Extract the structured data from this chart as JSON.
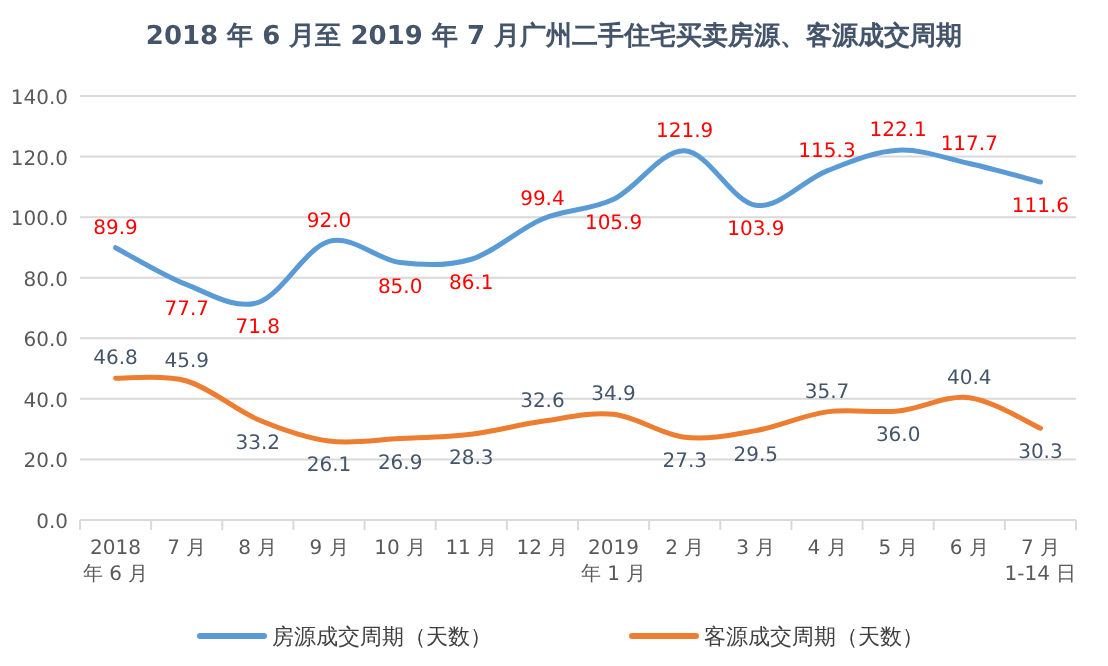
{
  "chart_data": {
    "type": "line",
    "title": "2018 年 6 月至 2019 年 7 月广州二手住宅买卖房源、客源成交周期",
    "categories": [
      "2018 年 6 月",
      "7 月",
      "8 月",
      "9 月",
      "10 月",
      "11 月",
      "12 月",
      "2019 年 1 月",
      "2 月",
      "3 月",
      "4 月",
      "5 月",
      "6 月",
      "7 月 1-14 日"
    ],
    "series": [
      {
        "name": "房源成交周期（天数）",
        "color": "#5b9bd5",
        "values": [
          89.9,
          77.7,
          71.8,
          92.0,
          85.0,
          86.1,
          99.4,
          105.9,
          121.9,
          103.9,
          115.3,
          122.1,
          117.7,
          111.6
        ],
        "value_labels": [
          "89.9",
          "77.7",
          "71.8",
          "92.0",
          "85.0",
          "86.1",
          "99.4",
          "105.9",
          "121.9",
          "103.9",
          "115.3",
          "122.1",
          "117.7",
          "111.6"
        ]
      },
      {
        "name": "客源成交周期（天数）",
        "color": "#ed7d31",
        "values": [
          46.8,
          45.9,
          33.2,
          26.1,
          26.9,
          28.3,
          32.6,
          34.9,
          27.3,
          29.5,
          35.7,
          36.0,
          40.4,
          30.3
        ],
        "value_labels": [
          "46.8",
          "45.9",
          "33.2",
          "26.1",
          "26.9",
          "28.3",
          "32.6",
          "34.9",
          "27.3",
          "29.5",
          "35.7",
          "36.0",
          "40.4",
          "30.3"
        ]
      }
    ],
    "ylim": [
      0,
      140
    ],
    "yticks": [
      {
        "value": 0,
        "label": "0.0"
      },
      {
        "value": 20,
        "label": "20.0"
      },
      {
        "value": 40,
        "label": "40.0"
      },
      {
        "value": 60,
        "label": "60.0"
      },
      {
        "value": 80,
        "label": "80.0"
      },
      {
        "value": 100,
        "label": "100.0"
      },
      {
        "value": 120,
        "label": "120.0"
      },
      {
        "value": 140,
        "label": "140.0"
      }
    ],
    "grid": "y",
    "legend": "bottom",
    "marker": "none",
    "line_style": "solid"
  }
}
